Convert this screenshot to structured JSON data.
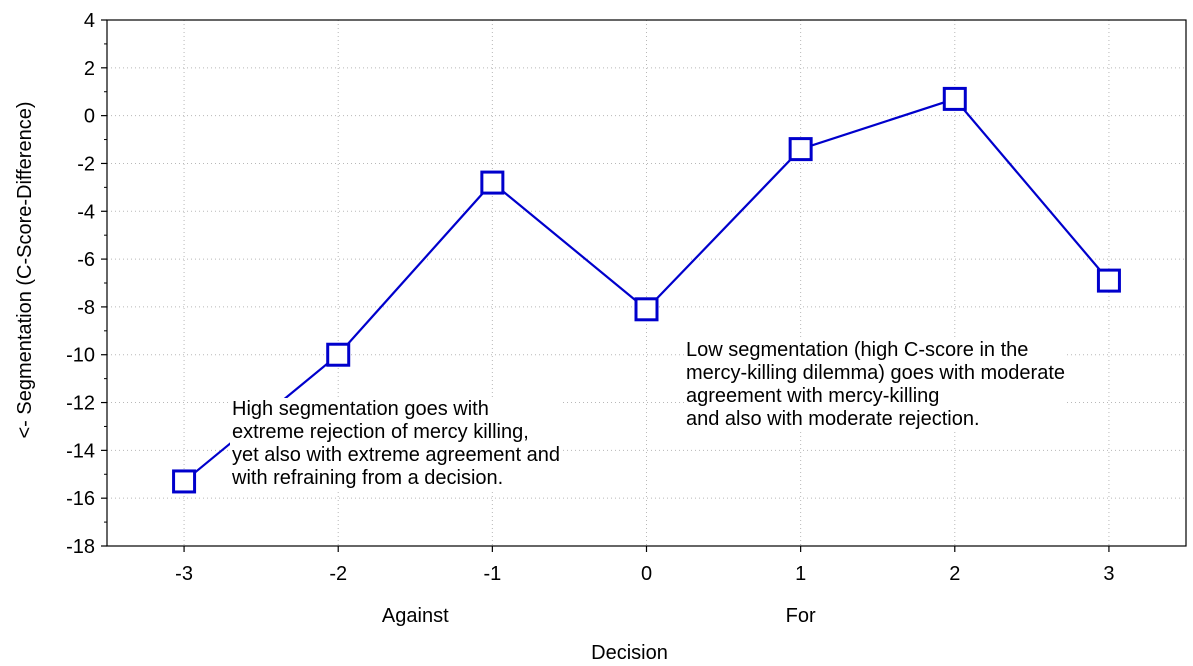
{
  "chart_data": {
    "type": "line",
    "title": "",
    "xlabel": "Decision",
    "ylabel": "<- Segmentation (C-Score-Difference)",
    "x": [
      -3,
      -2,
      -1,
      0,
      1,
      2,
      3
    ],
    "x_tick_labels": [
      "-3",
      "-2",
      "-1",
      "0",
      "1",
      "2",
      "3"
    ],
    "x_group_labels": [
      {
        "label": "Against",
        "at": -1.5
      },
      {
        "label": "For",
        "at": 1
      }
    ],
    "xlim": [
      -3.5,
      3.5
    ],
    "ylim": [
      -18,
      4
    ],
    "y_ticks": [
      4,
      2,
      0,
      -2,
      -4,
      -6,
      -8,
      -10,
      -12,
      -14,
      -16,
      -18
    ],
    "y_tick_labels": [
      "4",
      "2",
      "0",
      "-2",
      "-4",
      "-6",
      "-8",
      "-10",
      "-12",
      "-14",
      "-16",
      "-18"
    ],
    "grid": true,
    "series": [
      {
        "values": [
          -15.3,
          -10.0,
          -2.8,
          -8.1,
          -1.4,
          0.7,
          -6.9
        ],
        "color": "#0000cc",
        "marker": "open-square"
      }
    ],
    "annotations": [
      {
        "id": "high",
        "lines": [
          "High segmentation goes with",
          "extreme rejection of mercy killing,",
          "yet also with extreme agreement and",
          "with refraining from a decision."
        ]
      },
      {
        "id": "low",
        "lines": [
          "Low segmentation (high C-score in the",
          "mercy-killing dilemma) goes with moderate",
          "agreement with mercy-killing",
          "and also with moderate rejection."
        ]
      }
    ]
  }
}
